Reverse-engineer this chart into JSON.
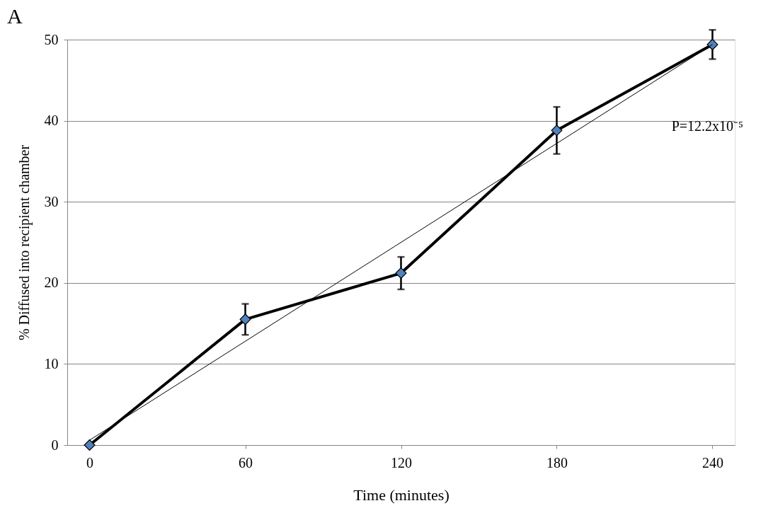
{
  "chart_data": {
    "type": "line",
    "title": "A",
    "xlabel": "Time (minutes)",
    "ylabel": "% Diffused into recipient chamber",
    "x": [
      0,
      60,
      120,
      180,
      240
    ],
    "series": [
      {
        "type": "line",
        "color": "#000000",
        "values": [
          0,
          15.5,
          21.2,
          38.8,
          49.4
        ],
        "errors": [
          null,
          1.9,
          2.0,
          2.9,
          1.8
        ],
        "marker": "diamond",
        "colors": [
          "#4f81bd",
          "#4f81bd",
          "#4f81bd",
          "#4f81bd",
          "#4f81bd"
        ]
      },
      {
        "type": "line",
        "color": "#000000",
        "x": [
          0,
          240
        ],
        "values": [
          0.6,
          49.4
        ],
        "marker": "none"
      }
    ],
    "xlim": [
      -8.6,
      248.6
    ],
    "xticks": [
      0,
      60,
      120,
      180,
      240
    ],
    "ylim": [
      0,
      50
    ],
    "yticks": [
      0,
      10,
      20,
      30,
      40,
      50
    ],
    "grid": "y",
    "line_style": "solid",
    "annotations": [
      "P=12.2x10⁻⁵"
    ]
  }
}
